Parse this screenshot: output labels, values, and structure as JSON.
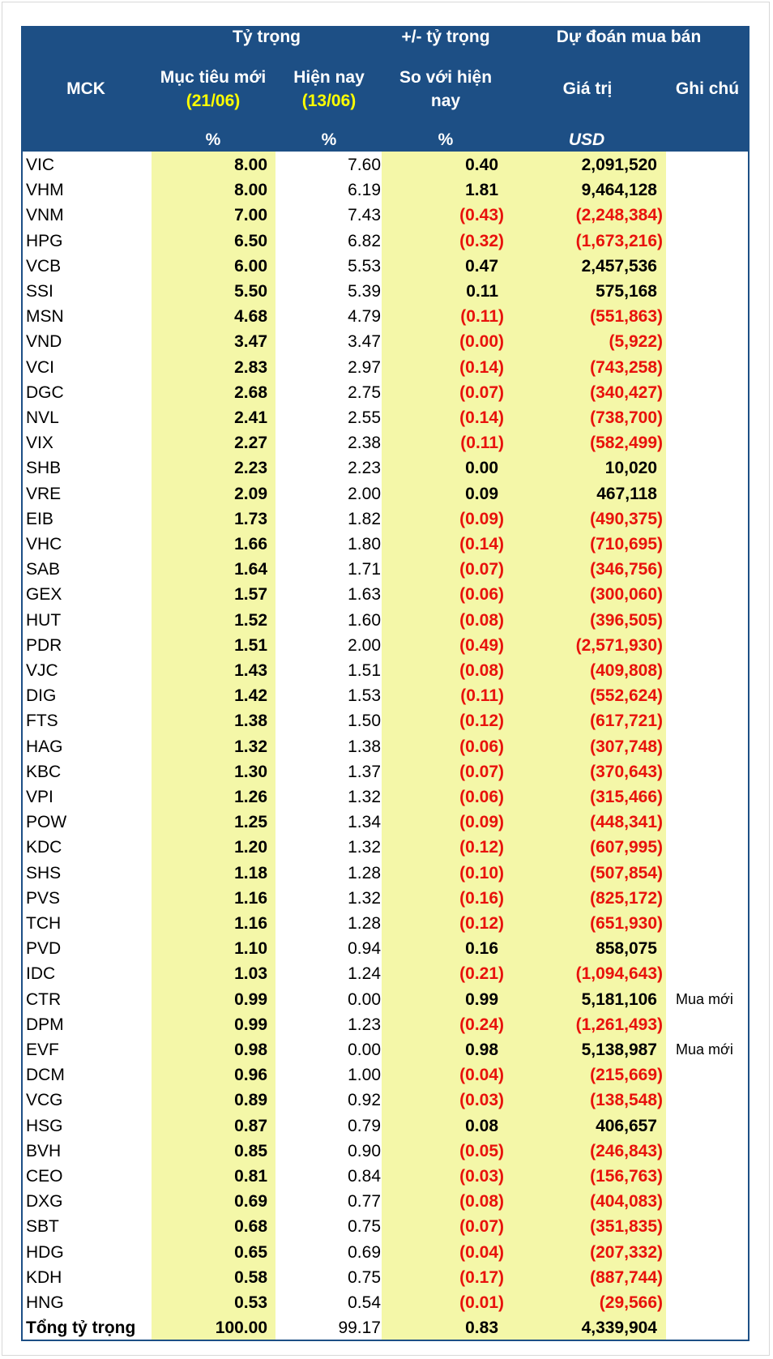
{
  "header": {
    "groups": [
      "Tỷ trọng",
      "+/- tỷ trọng",
      "Dự đoán mua bán"
    ],
    "columns": [
      {
        "label": "MCK"
      },
      {
        "label": "Mục tiêu mới",
        "date": "(21/06)",
        "unit": "%"
      },
      {
        "label": "Hiện nay",
        "date": "(13/06)",
        "unit": "%"
      },
      {
        "label": "So với hiện",
        "label2": "nay",
        "unit": "%"
      },
      {
        "label": "Giá trị",
        "unit": "USD"
      },
      {
        "label": "Ghi chú"
      }
    ]
  },
  "table": {
    "rows": [
      [
        "VIC",
        "8.00",
        "7.60",
        "0.40",
        "2,091,520"
      ],
      [
        "VHM",
        "8.00",
        "6.19",
        "1.81",
        "9,464,128"
      ],
      [
        "VNM",
        "7.00",
        "7.43",
        "(0.43)",
        "(2,248,384)"
      ],
      [
        "HPG",
        "6.50",
        "6.82",
        "(0.32)",
        "(1,673,216)"
      ],
      [
        "VCB",
        "6.00",
        "5.53",
        "0.47",
        "2,457,536"
      ],
      [
        "SSI",
        "5.50",
        "5.39",
        "0.11",
        "575,168"
      ],
      [
        "MSN",
        "4.68",
        "4.79",
        "(0.11)",
        "(551,863)"
      ],
      [
        "VND",
        "3.47",
        "3.47",
        "(0.00)",
        "(5,922)"
      ],
      [
        "VCI",
        "2.83",
        "2.97",
        "(0.14)",
        "(743,258)"
      ],
      [
        "DGC",
        "2.68",
        "2.75",
        "(0.07)",
        "(340,427)"
      ],
      [
        "NVL",
        "2.41",
        "2.55",
        "(0.14)",
        "(738,700)"
      ],
      [
        "VIX",
        "2.27",
        "2.38",
        "(0.11)",
        "(582,499)"
      ],
      [
        "SHB",
        "2.23",
        "2.23",
        "0.00",
        "10,020"
      ],
      [
        "VRE",
        "2.09",
        "2.00",
        "0.09",
        "467,118"
      ],
      [
        "EIB",
        "1.73",
        "1.82",
        "(0.09)",
        "(490,375)"
      ],
      [
        "VHC",
        "1.66",
        "1.80",
        "(0.14)",
        "(710,695)"
      ],
      [
        "SAB",
        "1.64",
        "1.71",
        "(0.07)",
        "(346,756)"
      ],
      [
        "GEX",
        "1.57",
        "1.63",
        "(0.06)",
        "(300,060)"
      ],
      [
        "HUT",
        "1.52",
        "1.60",
        "(0.08)",
        "(396,505)"
      ],
      [
        "PDR",
        "1.51",
        "2.00",
        "(0.49)",
        "(2,571,930)"
      ],
      [
        "VJC",
        "1.43",
        "1.51",
        "(0.08)",
        "(409,808)"
      ],
      [
        "DIG",
        "1.42",
        "1.53",
        "(0.11)",
        "(552,624)"
      ],
      [
        "FTS",
        "1.38",
        "1.50",
        "(0.12)",
        "(617,721)"
      ],
      [
        "HAG",
        "1.32",
        "1.38",
        "(0.06)",
        "(307,748)"
      ],
      [
        "KBC",
        "1.30",
        "1.37",
        "(0.07)",
        "(370,643)"
      ],
      [
        "VPI",
        "1.26",
        "1.32",
        "(0.06)",
        "(315,466)"
      ],
      [
        "POW",
        "1.25",
        "1.34",
        "(0.09)",
        "(448,341)"
      ],
      [
        "KDC",
        "1.20",
        "1.32",
        "(0.12)",
        "(607,995)"
      ],
      [
        "SHS",
        "1.18",
        "1.28",
        "(0.10)",
        "(507,854)"
      ],
      [
        "PVS",
        "1.16",
        "1.32",
        "(0.16)",
        "(825,172)"
      ],
      [
        "TCH",
        "1.16",
        "1.28",
        "(0.12)",
        "(651,930)"
      ],
      [
        "PVD",
        "1.10",
        "0.94",
        "0.16",
        "858,075"
      ],
      [
        "IDC",
        "1.03",
        "1.24",
        "(0.21)",
        "(1,094,643)"
      ],
      [
        "CTR",
        "0.99",
        "0.00",
        "0.99",
        "5,181,106",
        "Mua mới"
      ],
      [
        "DPM",
        "0.99",
        "1.23",
        "(0.24)",
        "(1,261,493)"
      ],
      [
        "EVF",
        "0.98",
        "0.00",
        "0.98",
        "5,138,987",
        "Mua mới"
      ],
      [
        "DCM",
        "0.96",
        "1.00",
        "(0.04)",
        "(215,669)"
      ],
      [
        "VCG",
        "0.89",
        "0.92",
        "(0.03)",
        "(138,548)"
      ],
      [
        "HSG",
        "0.87",
        "0.79",
        "0.08",
        "406,657"
      ],
      [
        "BVH",
        "0.85",
        "0.90",
        "(0.05)",
        "(246,843)"
      ],
      [
        "CEO",
        "0.81",
        "0.84",
        "(0.03)",
        "(156,763)"
      ],
      [
        "DXG",
        "0.69",
        "0.77",
        "(0.08)",
        "(404,083)"
      ],
      [
        "SBT",
        "0.68",
        "0.75",
        "(0.07)",
        "(351,835)"
      ],
      [
        "HDG",
        "0.65",
        "0.69",
        "(0.04)",
        "(207,332)"
      ],
      [
        "KDH",
        "0.58",
        "0.75",
        "(0.17)",
        "(887,744)"
      ],
      [
        "HNG",
        "0.53",
        "0.54",
        "(0.01)",
        "(29,566)"
      ],
      [
        "Tổng tỷ trọng",
        "100.00",
        "99.17",
        "0.83",
        "4,339,904"
      ]
    ]
  }
}
